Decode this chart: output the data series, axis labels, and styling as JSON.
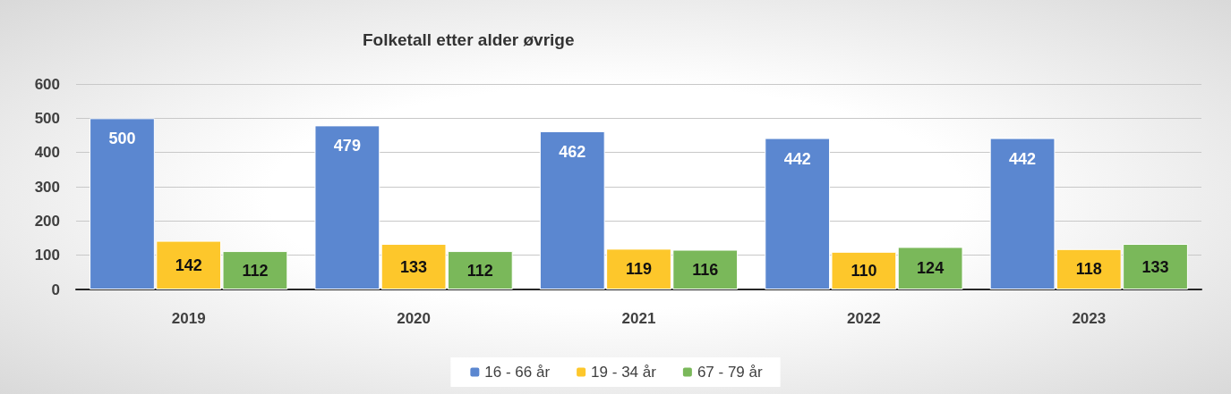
{
  "chart_data": {
    "type": "bar",
    "title": "Folketall etter alder øvrige",
    "categories": [
      "2019",
      "2020",
      "2021",
      "2022",
      "2023"
    ],
    "series": [
      {
        "name": "16 - 66 år",
        "color": "#5b87d0",
        "values": [
          500,
          479,
          462,
          442,
          442
        ]
      },
      {
        "name": "19 - 34 år",
        "color": "#fdc72b",
        "values": [
          142,
          133,
          119,
          110,
          118
        ]
      },
      {
        "name": "67 - 79 år",
        "color": "#7ab85a",
        "values": [
          112,
          112,
          116,
          124,
          133
        ]
      }
    ],
    "ylim": [
      0,
      600
    ],
    "yticks": [
      0,
      100,
      200,
      300,
      400,
      500,
      600
    ],
    "grid": "y",
    "legend": "bottom",
    "data_labels": true
  }
}
